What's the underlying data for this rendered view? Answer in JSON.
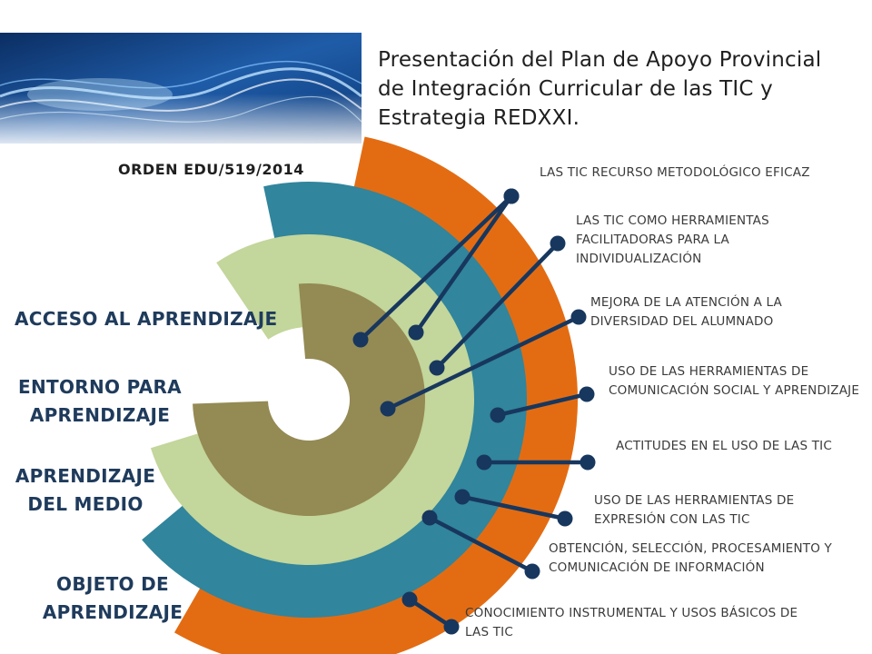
{
  "title": "Presentación del Plan de Apoyo Provincial de Integración Curricular de las TIC y Estrategia REDXXI.",
  "order": "ORDEN EDU/519/2014",
  "colors": {
    "outer_orange": "#E36C13",
    "teal": "#31859C",
    "light_green": "#C3D69B",
    "olive": "#948A54",
    "connector": "#17375E",
    "label_blue": "#1F3B5C"
  },
  "rings": [
    {
      "id": "acceso",
      "label": "ACCESO AL APRENDIZAJE"
    },
    {
      "id": "entorno",
      "label": "ENTORNO PARA APRENDIZAJE"
    },
    {
      "id": "medio",
      "label": "APRENDIZAJE DEL MEDIO"
    },
    {
      "id": "objeto",
      "label": "OBJETO DE APRENDIZAJE"
    }
  ],
  "items": [
    {
      "label": "LAS TIC RECURSO METODOLÓGICO EFICAZ"
    },
    {
      "label": "LAS TIC COMO HERRAMIENTAS FACILITADORAS PARA LA INDIVIDUALIZACIÓN"
    },
    {
      "label": "MEJORA DE LA ATENCIÓN A LA DIVERSIDAD DEL ALUMNADO"
    },
    {
      "label": "USO  DE LAS  HERRAMIENTAS DE COMUNICACIÓN SOCIAL Y APRENDIZAJE"
    },
    {
      "label": "ACTITUDES EN EL USO DE LAS TIC"
    },
    {
      "label": "USO DE LAS HERRAMIENTAS  DE EXPRESIÓN CON LAS TIC"
    },
    {
      "label": "OBTENCIÓN, SELECCIÓN, PROCESAMIENTO Y COMUNICACIÓN DE INFORMACIÓN"
    },
    {
      "label": "CONOCIMIENTO INSTRUMENTAL Y USOS BÁSICOS DE LAS TIC"
    }
  ]
}
